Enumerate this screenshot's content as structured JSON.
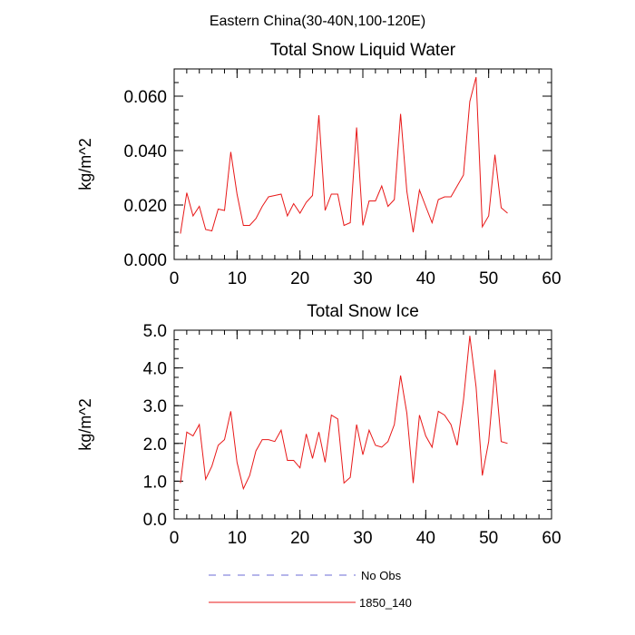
{
  "page": {
    "suptitle": "Eastern China(30-40N,100-120E)"
  },
  "legend": {
    "placement": "bottom",
    "items": [
      {
        "label": "No Obs",
        "color": "#6b6bd6",
        "dash": "dashed"
      },
      {
        "label": "1850_140",
        "color": "#e81818",
        "dash": "solid"
      }
    ]
  },
  "chart_data": [
    {
      "type": "line",
      "title": "Total Snow Liquid Water",
      "xlabel": "",
      "ylabel": "kg/m^2",
      "xlim": [
        0,
        60
      ],
      "ylim": [
        0,
        0.07
      ],
      "xticks": [
        0,
        10,
        20,
        30,
        40,
        50,
        60
      ],
      "xticklabels": [
        "0",
        "10",
        "20",
        "30",
        "40",
        "50",
        "60"
      ],
      "yticks": [
        0,
        0.02,
        0.04,
        0.06
      ],
      "yticklabels": [
        "0.000",
        "0.020",
        "0.040",
        "0.060"
      ],
      "grid": false,
      "series": [
        {
          "name": "1850_140",
          "color": "#e81818",
          "x": [
            1,
            2,
            3,
            4,
            5,
            6,
            7,
            8,
            9,
            10,
            11,
            12,
            13,
            14,
            15,
            16,
            17,
            18,
            19,
            20,
            21,
            22,
            23,
            24,
            25,
            26,
            27,
            28,
            29,
            30,
            31,
            32,
            33,
            34,
            35,
            36,
            37,
            38,
            39,
            40,
            41,
            42,
            43,
            44,
            45,
            46,
            47,
            48,
            49,
            50,
            51,
            52,
            53
          ],
          "values": [
            0.0095,
            0.0245,
            0.016,
            0.0195,
            0.011,
            0.0105,
            0.0185,
            0.018,
            0.0395,
            0.024,
            0.0125,
            0.0125,
            0.015,
            0.0195,
            0.023,
            0.0235,
            0.024,
            0.016,
            0.0205,
            0.017,
            0.021,
            0.0235,
            0.053,
            0.018,
            0.024,
            0.024,
            0.0125,
            0.0135,
            0.0485,
            0.0125,
            0.0215,
            0.0215,
            0.027,
            0.0195,
            0.022,
            0.0535,
            0.025,
            0.01,
            0.0255,
            0.0195,
            0.0135,
            0.022,
            0.023,
            0.023,
            0.027,
            0.031,
            0.058,
            0.067,
            0.012,
            0.016,
            0.0385,
            0.019,
            0.017
          ]
        }
      ]
    },
    {
      "type": "line",
      "title": "Total Snow Ice",
      "xlabel": "",
      "ylabel": "kg/m^2",
      "xlim": [
        0,
        60
      ],
      "ylim": [
        0,
        5
      ],
      "xticks": [
        0,
        10,
        20,
        30,
        40,
        50,
        60
      ],
      "xticklabels": [
        "0",
        "10",
        "20",
        "30",
        "40",
        "50",
        "60"
      ],
      "yticks": [
        0,
        1,
        2,
        3,
        4,
        5
      ],
      "yticklabels": [
        "0.0",
        "1.0",
        "2.0",
        "3.0",
        "4.0",
        "5.0"
      ],
      "grid": false,
      "series": [
        {
          "name": "1850_140",
          "color": "#e81818",
          "x": [
            1,
            2,
            3,
            4,
            5,
            6,
            7,
            8,
            9,
            10,
            11,
            12,
            13,
            14,
            15,
            16,
            17,
            18,
            19,
            20,
            21,
            22,
            23,
            24,
            25,
            26,
            27,
            28,
            29,
            30,
            31,
            32,
            33,
            34,
            35,
            36,
            37,
            38,
            39,
            40,
            41,
            42,
            43,
            44,
            45,
            46,
            47,
            48,
            49,
            50,
            51,
            52,
            53
          ],
          "values": [
            0.95,
            2.3,
            2.2,
            2.5,
            1.05,
            1.4,
            1.95,
            2.1,
            2.85,
            1.5,
            0.8,
            1.15,
            1.8,
            2.1,
            2.1,
            2.05,
            2.35,
            1.55,
            1.55,
            1.35,
            2.25,
            1.6,
            2.3,
            1.5,
            2.75,
            2.65,
            0.95,
            1.1,
            2.5,
            1.7,
            2.35,
            1.95,
            1.9,
            2.05,
            2.5,
            3.8,
            2.8,
            0.95,
            2.75,
            2.2,
            1.9,
            2.85,
            2.75,
            2.5,
            1.95,
            3.15,
            4.85,
            3.5,
            1.15,
            2.05,
            3.95,
            2.05,
            2.0
          ]
        }
      ]
    }
  ]
}
